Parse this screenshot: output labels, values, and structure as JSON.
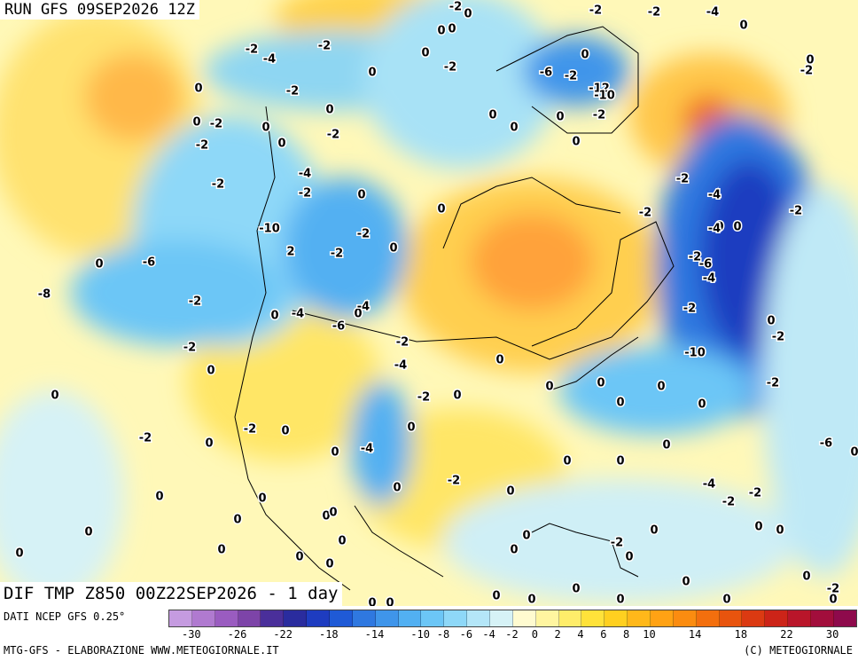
{
  "header": {
    "run_title": "RUN GFS 09SEP2026 12Z"
  },
  "map": {
    "field_title": "DIF TMP Z850 00Z22SEP2026 - 1 day"
  },
  "legend": {
    "source": "DATI NCEP GFS 0.25°",
    "colors": [
      "#c59be0",
      "#b07ad0",
      "#9a5cc0",
      "#7d44a8",
      "#4a2f9a",
      "#2a2c9e",
      "#1e3cc0",
      "#1f5ad6",
      "#2f78e0",
      "#3f95ea",
      "#52b0f2",
      "#6cc6f6",
      "#8ed8f8",
      "#b4e6f8",
      "#d6f2f6",
      "#fffbd0",
      "#fff5a0",
      "#ffed6a",
      "#ffe23a",
      "#ffd020",
      "#ffb81a",
      "#ffa214",
      "#fb8c10",
      "#f36f0e",
      "#e8540e",
      "#db3a12",
      "#cc2418",
      "#b9162a",
      "#a20e3c",
      "#8e0a4c"
    ],
    "ticks": [
      "-30",
      "-26",
      "-22",
      "-18",
      "-14",
      "-10",
      "-8",
      "-6",
      "-4",
      "-2",
      "0",
      "2",
      "4",
      "6",
      "8",
      "10",
      "14",
      "18",
      "22",
      "30"
    ]
  },
  "footer": {
    "left": "MTG-GFS - ELABORAZIONE WWW.METEOGIORNALE.IT",
    "right": "(C) METEOGIORNALE"
  },
  "contour_labels": [
    "-2",
    "0",
    "-2",
    "-4",
    "-2",
    "0",
    "0",
    "0",
    "-2",
    "-4",
    "-2",
    "0",
    "0",
    "-2",
    "-6",
    "-2",
    "0",
    "-12",
    "-10",
    "0",
    "-2",
    "0",
    "-2",
    "0",
    "0",
    "0",
    "0",
    "-2",
    "0",
    "-2",
    "0",
    "0",
    "-2",
    "0",
    "-2",
    "-4",
    "0",
    "-2",
    "-4",
    "-2",
    "0",
    "-2",
    "-2",
    "0",
    "-2",
    "-4",
    "0",
    "-10",
    "2",
    "-2",
    "0",
    "-2",
    "-2",
    "-6",
    "0",
    "-4",
    "-6",
    "-8",
    "-2",
    "0",
    "-4",
    "-2",
    "0",
    "0",
    "-2",
    "-6",
    "-4",
    "-2",
    "-2",
    "0",
    "-10",
    "-4",
    "0",
    "0",
    "-2",
    "0",
    "0",
    "0",
    "-2",
    "0",
    "0",
    "0",
    "-2",
    "0",
    "0",
    "0",
    "-2",
    "-4",
    "0",
    "-6",
    "0",
    "0",
    "0",
    "-2",
    "0",
    "-4",
    "-2",
    "-2",
    "0",
    "0",
    "0",
    "0",
    "0",
    "0",
    "0",
    "0",
    "-2",
    "0",
    "0",
    "0",
    "0",
    "0",
    "0",
    "0",
    "-2",
    "0",
    "0",
    "0",
    "0",
    "0",
    "0",
    "0",
    "0",
    "0",
    "0",
    "0",
    "0",
    "0",
    "0"
  ]
}
